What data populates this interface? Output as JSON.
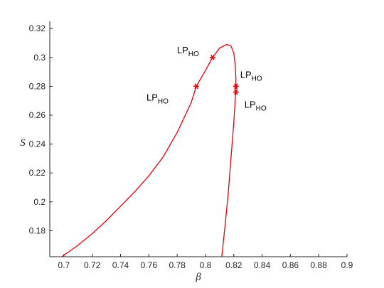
{
  "chart_data": {
    "type": "line",
    "xlabel": "β",
    "ylabel": "S",
    "xlim": [
      0.69,
      0.9
    ],
    "ylim": [
      0.162,
      0.325
    ],
    "xticks": [
      0.7,
      0.72,
      0.74,
      0.76,
      0.78,
      0.8,
      0.82,
      0.84,
      0.86,
      0.88,
      0.9
    ],
    "yticks": [
      0.18,
      0.2,
      0.22,
      0.24,
      0.26,
      0.28,
      0.3,
      0.32
    ],
    "series": [
      {
        "color": "#e8000b",
        "x": [
          0.6985,
          0.71,
          0.72,
          0.73,
          0.74,
          0.75,
          0.76,
          0.77,
          0.78,
          0.79,
          0.7935,
          0.8,
          0.805,
          0.81,
          0.815,
          0.818,
          0.82,
          0.821,
          0.8215,
          0.8215,
          0.821,
          0.82,
          0.818,
          0.816,
          0.814,
          0.8115
        ],
        "y": [
          0.162,
          0.17,
          0.178,
          0.187,
          0.197,
          0.207,
          0.218,
          0.231,
          0.248,
          0.269,
          0.28,
          0.291,
          0.3,
          0.3065,
          0.309,
          0.308,
          0.303,
          0.295,
          0.285,
          0.278,
          0.27,
          0.255,
          0.23,
          0.205,
          0.185,
          0.162
        ]
      }
    ],
    "annotations": [
      {
        "x": 0.7935,
        "y": 0.28,
        "label": "LP",
        "subscript": "HO"
      },
      {
        "x": 0.805,
        "y": 0.3,
        "label": "LP",
        "subscript": "HO"
      },
      {
        "x": 0.8215,
        "y": 0.28,
        "label": "LP",
        "subscript": "HO"
      },
      {
        "x": 0.8215,
        "y": 0.276,
        "label": "LP",
        "subscript": "HO"
      }
    ]
  }
}
